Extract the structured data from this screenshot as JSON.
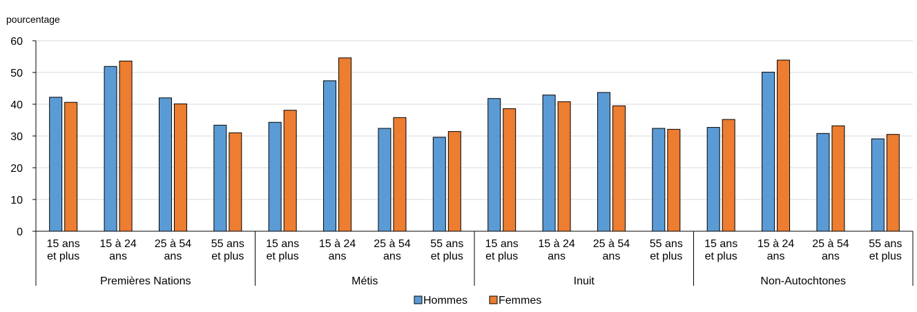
{
  "chart_data": {
    "type": "bar",
    "ylabel": "pourcentage",
    "ylim": [
      0,
      60
    ],
    "yticks": [
      0,
      10,
      20,
      30,
      40,
      50,
      60
    ],
    "grid": true,
    "legend_position": "bottom-center",
    "groups": [
      {
        "label": "Premières Nations",
        "categories": [
          [
            "15 ans",
            "et plus"
          ],
          [
            "15 à 24",
            "ans"
          ],
          [
            "25 à 54",
            "ans"
          ],
          [
            "55 ans",
            "et plus"
          ]
        ]
      },
      {
        "label": "Métis",
        "categories": [
          [
            "15 ans",
            "et plus"
          ],
          [
            "15 à 24",
            "ans"
          ],
          [
            "25 à 54",
            "ans"
          ],
          [
            "55 ans",
            "et plus"
          ]
        ]
      },
      {
        "label": "Inuit",
        "categories": [
          [
            "15 ans",
            "et plus"
          ],
          [
            "15 à 24",
            "ans"
          ],
          [
            "25 à 54",
            "ans"
          ],
          [
            "55 ans",
            "et plus"
          ]
        ]
      },
      {
        "label": "Non-Autochtones",
        "categories": [
          [
            "15 ans",
            "et plus"
          ],
          [
            "15 à 24",
            "ans"
          ],
          [
            "25 à 54",
            "ans"
          ],
          [
            "55 ans",
            "et plus"
          ]
        ]
      }
    ],
    "series": [
      {
        "name": "Hommes",
        "color": "#5B9BD5",
        "values": [
          42.2,
          51.9,
          42.0,
          33.4,
          34.3,
          47.4,
          32.4,
          29.6,
          41.8,
          42.9,
          43.7,
          32.4,
          32.7,
          50.1,
          30.8,
          29.1
        ]
      },
      {
        "name": "Femmes",
        "color": "#ED7D31",
        "values": [
          40.6,
          53.6,
          40.1,
          31.0,
          38.1,
          54.6,
          35.8,
          31.4,
          38.6,
          40.8,
          39.5,
          32.1,
          35.2,
          53.9,
          33.2,
          30.5
        ]
      }
    ]
  }
}
